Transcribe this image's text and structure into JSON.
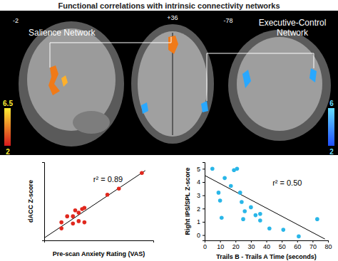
{
  "header": {
    "title": "Functional correlations with intrinsic connectivity networks"
  },
  "brain_panels": {
    "salience_label": "Salience Network",
    "executive_label": "Executive-Control Network",
    "slices": [
      "-2",
      "+36",
      "-78"
    ],
    "salience_colorbar": {
      "range": [
        2,
        6.5
      ],
      "ticks": [
        2,
        6.5
      ],
      "colors": [
        "#d7191c",
        "#ffee33"
      ]
    },
    "executive_colorbar": {
      "range": [
        2,
        6
      ],
      "ticks": [
        2,
        6
      ],
      "colors": [
        "#1f4fff",
        "#66ddff"
      ]
    }
  },
  "chart_data": [
    {
      "type": "scatter",
      "x_label": "Pre-scan Anxiety Rating (VAS)",
      "y_label": "dACC Z-score",
      "annotation": "r² = 0.89",
      "color": "#e0281e",
      "tick_labels": false,
      "x": [
        0,
        0,
        0.5,
        1,
        1,
        1.2,
        1.5,
        1.5,
        1.8,
        2,
        2,
        4,
        5,
        7
      ],
      "values": [
        0.0,
        0.5,
        1.0,
        0.4,
        1.0,
        1.5,
        0.6,
        1.3,
        1.6,
        0.5,
        1.7,
        2.8,
        3.3,
        4.6
      ],
      "trend_line": {
        "x": [
          -1.5,
          7.3
        ],
        "y": [
          -0.8,
          4.8
        ]
      },
      "xlim": [
        -1.5,
        8
      ],
      "ylim": [
        -1,
        5.5
      ]
    },
    {
      "type": "scatter",
      "x_label": "Trails B - Trails A Time (seconds)",
      "y_label": "Right IPS/SPL Z-score",
      "annotation": "r² = 0.50",
      "color": "#29b6e8",
      "x": [
        5,
        9,
        10,
        11,
        13,
        17,
        19,
        21,
        23,
        24,
        25,
        26,
        30,
        33,
        36,
        36,
        42,
        51,
        61,
        73
      ],
      "values": [
        5.0,
        3.2,
        2.6,
        1.3,
        4.3,
        3.7,
        4.9,
        5.0,
        3.2,
        2.5,
        1.2,
        1.8,
        2.1,
        1.5,
        1.6,
        1.1,
        0.5,
        0.4,
        -0.1,
        1.2
      ],
      "trend_line": {
        "x": [
          0,
          78
        ],
        "y": [
          4.5,
          -0.3
        ]
      },
      "xlim": [
        0,
        80
      ],
      "ylim": [
        -0.4,
        5.5
      ],
      "xticks": [
        0,
        10,
        20,
        30,
        40,
        50,
        60,
        70,
        80
      ],
      "yticks": [
        0,
        1,
        2,
        3,
        4,
        5
      ]
    }
  ]
}
